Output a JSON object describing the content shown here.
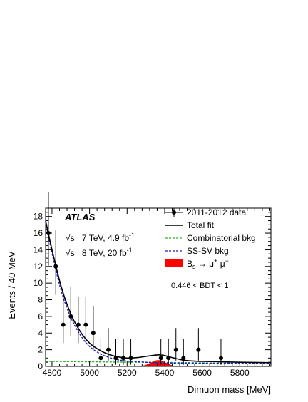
{
  "chart_data": {
    "type": "scatter",
    "title": "",
    "experiment_label": "ATLAS",
    "energy_lines": [
      {
        "sqrt_symbol": "√s",
        "text": "= 7 TeV, 4.9 fb",
        "sup": "-1"
      },
      {
        "sqrt_symbol": "√s",
        "text": "= 8 TeV, 20 fb",
        "sup": "-1"
      }
    ],
    "selection_label": "0.446 < BDT < 1",
    "xlabel": "Dimuon mass [MeV]",
    "ylabel": "Events / 40 MeV",
    "xlim": [
      4766,
      5966
    ],
    "ylim": [
      0,
      19
    ],
    "x_ticks": [
      4800,
      5000,
      5200,
      5400,
      5600,
      5800
    ],
    "y_ticks": [
      0,
      2,
      4,
      6,
      8,
      10,
      12,
      14,
      16,
      18
    ],
    "grid": false,
    "legend_position": "top-right",
    "legend": [
      {
        "label": "2011-2012 data",
        "style": "data"
      },
      {
        "label": "Total fit",
        "style": "solid-line"
      },
      {
        "label": "Combinatorial bkg",
        "style": "green-dashed"
      },
      {
        "label": "SS-SV bkg",
        "style": "blue-dashed"
      },
      {
        "label": "B",
        "sub": "s",
        "arrow": " → μ",
        "sup1": "+",
        "mid": " μ",
        "sup2": "−",
        "style": "red-fill"
      }
    ],
    "colors": {
      "data": "#000000",
      "total_fit": "#000000",
      "combinatorial": "#22bb22",
      "ss_sv": "#1a1acc",
      "signal": "#ff0000"
    },
    "data_points": [
      {
        "x": 4781,
        "y": 16.0,
        "lo": 3.9,
        "hi": 4.9
      },
      {
        "x": 4820,
        "y": 12.0,
        "lo": 3.4,
        "hi": 4.4
      },
      {
        "x": 4860,
        "y": 5.0,
        "lo": 2.2,
        "hi": 3.4
      },
      {
        "x": 4900,
        "y": 6.0,
        "lo": 2.4,
        "hi": 3.6
      },
      {
        "x": 4940,
        "y": 5.0,
        "lo": 2.2,
        "hi": 3.4
      },
      {
        "x": 4980,
        "y": 5.0,
        "lo": 2.2,
        "hi": 3.4
      },
      {
        "x": 5020,
        "y": 4.0,
        "lo": 2.0,
        "hi": 3.2
      },
      {
        "x": 5060,
        "y": 1.0,
        "lo": 0.8,
        "hi": 2.3
      },
      {
        "x": 5100,
        "y": 2.0,
        "lo": 1.3,
        "hi": 2.6
      },
      {
        "x": 5140,
        "y": 1.0,
        "lo": 0.8,
        "hi": 2.3
      },
      {
        "x": 5180,
        "y": 1.0,
        "lo": 0.8,
        "hi": 2.3
      },
      {
        "x": 5220,
        "y": 1.0,
        "lo": 0.8,
        "hi": 2.3
      },
      {
        "x": 5380,
        "y": 1.0,
        "lo": 0.8,
        "hi": 2.3
      },
      {
        "x": 5420,
        "y": 1.0,
        "lo": 0.8,
        "hi": 2.3
      },
      {
        "x": 5460,
        "y": 2.0,
        "lo": 1.3,
        "hi": 2.6
      },
      {
        "x": 5500,
        "y": 1.0,
        "lo": 0.8,
        "hi": 2.3
      },
      {
        "x": 5580,
        "y": 2.0,
        "lo": 1.3,
        "hi": 2.6
      },
      {
        "x": 5700,
        "y": 1.0,
        "lo": 0.8,
        "hi": 2.3
      }
    ],
    "total_fit": {
      "x": [
        4766,
        4800,
        4850,
        4900,
        4950,
        5000,
        5050,
        5100,
        5150,
        5200,
        5250,
        5300,
        5350,
        5375,
        5400,
        5450,
        5500,
        5550,
        5600,
        5700,
        5800,
        5966
      ],
      "y": [
        17.5,
        14.0,
        9.5,
        6.3,
        4.2,
        2.8,
        2.0,
        1.45,
        1.15,
        1.0,
        1.05,
        1.2,
        1.35,
        1.38,
        1.3,
        1.0,
        0.75,
        0.65,
        0.6,
        0.55,
        0.5,
        0.45
      ]
    },
    "combinatorial_bkg": {
      "x": [
        4766,
        5966
      ],
      "y": [
        0.6,
        0.35
      ]
    },
    "ss_sv_bkg": {
      "x": [
        4766,
        4800,
        4850,
        4900,
        4950,
        5000,
        5050,
        5100,
        5150,
        5200,
        5300,
        5400,
        5500,
        5600,
        5800,
        5966
      ],
      "y": [
        17.3,
        13.6,
        9.0,
        5.9,
        3.8,
        2.4,
        1.6,
        1.1,
        0.8,
        0.65,
        0.5,
        0.42,
        0.4,
        0.38,
        0.36,
        0.35
      ]
    },
    "signal": {
      "mean": 5366,
      "sigma": 40,
      "peak": 0.75
    }
  }
}
